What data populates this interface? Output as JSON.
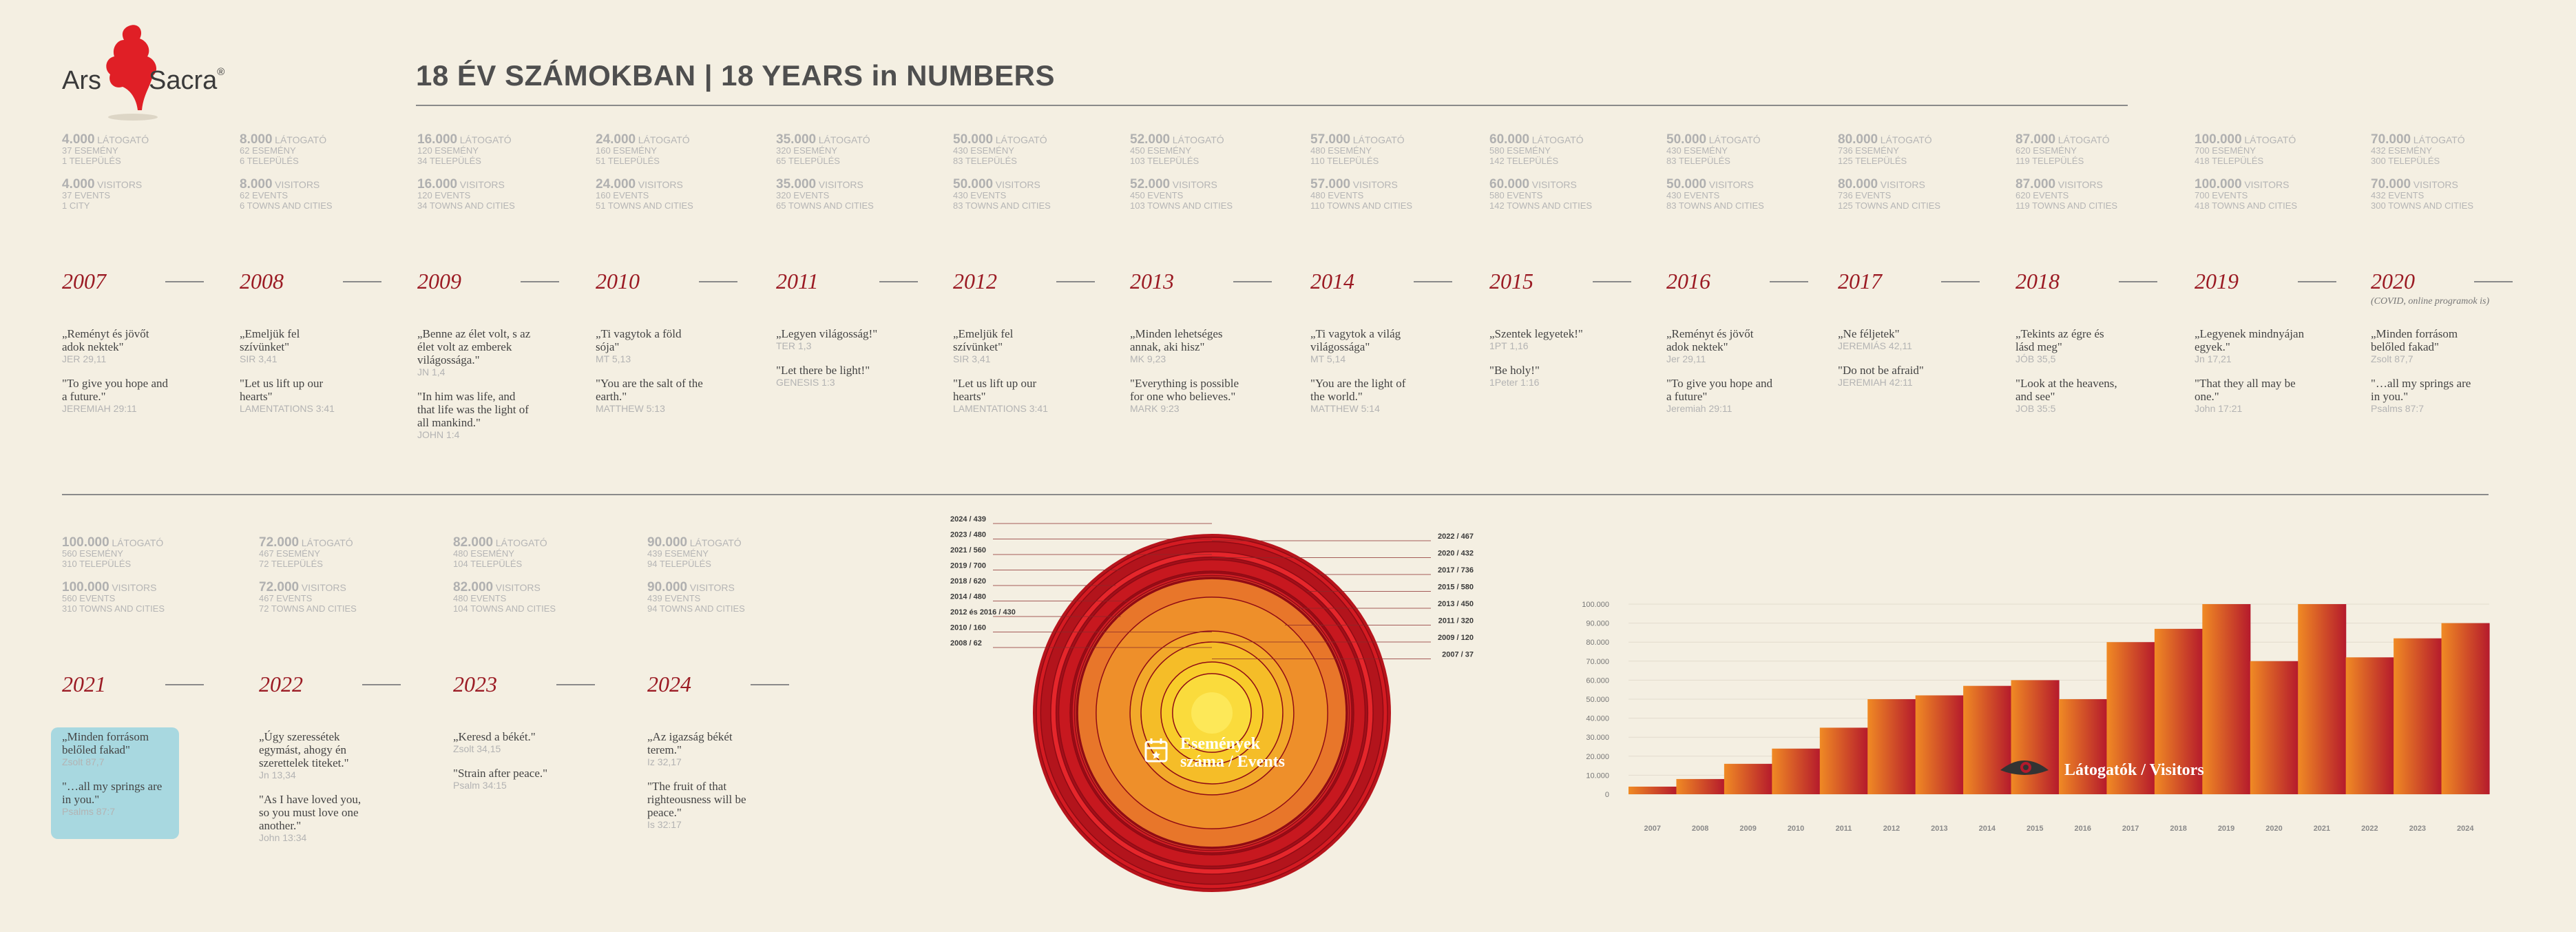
{
  "logo": {
    "left": "Ars",
    "right": "Sacra",
    "reg": "®"
  },
  "title": "18 ÉV SZÁMOKBAN | 18 YEARS in NUMBERS",
  "years": [
    {
      "year": "2007",
      "hu_count": "4.000",
      "hu_unit": "LÁTOGATÓ",
      "hu_events": "37 ESEMÉNY",
      "hu_towns": "1 TELEPÜLÉS",
      "en_count": "4.000",
      "en_unit": "VISITORS",
      "en_events": "37 EVENTS",
      "en_towns": "1 CITY",
      "q1": "„Reményt és jövőt adok nektek\"",
      "r1": "JER 29,11",
      "q2": "\"To give you hope and a future.\"",
      "r2": "JEREMIAH 29:11",
      "note": ""
    },
    {
      "year": "2008",
      "hu_count": "8.000",
      "hu_unit": "LÁTOGATÓ",
      "hu_events": "62 ESEMÉNY",
      "hu_towns": "6 TELEPÜLÉS",
      "en_count": "8.000",
      "en_unit": "VISITORS",
      "en_events": "62 EVENTS",
      "en_towns": "6 TOWNS AND CITIES",
      "q1": "„Emeljük fel szívünket\"",
      "r1": "SIR 3,41",
      "q2": "\"Let us lift up our hearts\"",
      "r2": "LAMENTATIONS 3:41",
      "note": ""
    },
    {
      "year": "2009",
      "hu_count": "16.000",
      "hu_unit": "LÁTOGATÓ",
      "hu_events": "120 ESEMÉNY",
      "hu_towns": "34 TELEPÜLÉS",
      "en_count": "16.000",
      "en_unit": "VISITORS",
      "en_events": "120 EVENTS",
      "en_towns": "34 TOWNS AND CITIES",
      "q1": "„Benne az élet volt, s az élet volt az emberek világossága.\"",
      "r1": "JN 1,4",
      "q2": "\"In him was life, and that life was the light of all mankind.\"",
      "r2": "JOHN 1:4",
      "note": ""
    },
    {
      "year": "2010",
      "hu_count": "24.000",
      "hu_unit": "LÁTOGATÓ",
      "hu_events": "160 ESEMÉNY",
      "hu_towns": "51 TELEPÜLÉS",
      "en_count": "24.000",
      "en_unit": "VISITORS",
      "en_events": "160 EVENTS",
      "en_towns": "51 TOWNS AND CITIES",
      "q1": "„Ti vagytok a föld sója\"",
      "r1": "MT 5,13",
      "q2": "\"You are the salt of the earth.\"",
      "r2": "MATTHEW 5:13",
      "note": ""
    },
    {
      "year": "2011",
      "hu_count": "35.000",
      "hu_unit": "LÁTOGATÓ",
      "hu_events": "320 ESEMÉNY",
      "hu_towns": "65 TELEPÜLÉS",
      "en_count": "35.000",
      "en_unit": "VISITORS",
      "en_events": "320 EVENTS",
      "en_towns": "65 TOWNS AND CITIES",
      "q1": "„Legyen világosság!\"",
      "r1": "TER 1,3",
      "q2": "\"Let there be light!\"",
      "r2": "GENESIS 1:3",
      "note": ""
    },
    {
      "year": "2012",
      "hu_count": "50.000",
      "hu_unit": "LÁTOGATÓ",
      "hu_events": "430 ESEMÉNY",
      "hu_towns": "83 TELEPÜLÉS",
      "en_count": "50.000",
      "en_unit": "VISITORS",
      "en_events": "430 EVENTS",
      "en_towns": "83 TOWNS AND CITIES",
      "q1": "„Emeljük fel szívünket\"",
      "r1": "SIR 3,41",
      "q2": "\"Let us lift up our hearts\"",
      "r2": "LAMENTATIONS 3:41",
      "note": ""
    },
    {
      "year": "2013",
      "hu_count": "52.000",
      "hu_unit": "LÁTOGATÓ",
      "hu_events": "450 ESEMÉNY",
      "hu_towns": "103 TELEPÜLÉS",
      "en_count": "52.000",
      "en_unit": "VISITORS",
      "en_events": "450 EVENTS",
      "en_towns": "103 TOWNS AND CITIES",
      "q1": "„Minden lehetséges annak, aki hisz\"",
      "r1": "MK 9,23",
      "q2": "\"Everything is possible for one who believes.\"",
      "r2": "MARK 9:23",
      "note": ""
    },
    {
      "year": "2014",
      "hu_count": "57.000",
      "hu_unit": "LÁTOGATÓ",
      "hu_events": "480 ESEMÉNY",
      "hu_towns": "110 TELEPÜLÉS",
      "en_count": "57.000",
      "en_unit": "VISITORS",
      "en_events": "480 EVENTS",
      "en_towns": "110 TOWNS AND CITIES",
      "q1": "„Ti vagytok a világ világossága\"",
      "r1": "MT 5,14",
      "q2": "\"You are the light of the world.\"",
      "r2": "MATTHEW 5:14",
      "note": ""
    },
    {
      "year": "2015",
      "hu_count": "60.000",
      "hu_unit": "LÁTOGATÓ",
      "hu_events": "580 ESEMÉNY",
      "hu_towns": "142 TELEPÜLÉS",
      "en_count": "60.000",
      "en_unit": "VISITORS",
      "en_events": "580 EVENTS",
      "en_towns": "142 TOWNS AND CITIES",
      "q1": "„Szentek legyetek!\"",
      "r1": "1PT 1,16",
      "q2": "\"Be holy!\"",
      "r2": "1Peter 1:16",
      "note": ""
    },
    {
      "year": "2016",
      "hu_count": "50.000",
      "hu_unit": "LÁTOGATÓ",
      "hu_events": "430 ESEMÉNY",
      "hu_towns": "83 TELEPÜLÉS",
      "en_count": "50.000",
      "en_unit": "VISITORS",
      "en_events": "430 EVENTS",
      "en_towns": "83 TOWNS AND CITIES",
      "q1": "„Reményt és jövőt adok nektek\"",
      "r1": "Jer 29,11",
      "q2": "\"To give you hope and a future\"",
      "r2": "Jeremiah 29:11",
      "note": ""
    },
    {
      "year": "2017",
      "hu_count": "80.000",
      "hu_unit": "LÁTOGATÓ",
      "hu_events": "736 ESEMÉNY",
      "hu_towns": "125 TELEPÜLÉS",
      "en_count": "80.000",
      "en_unit": "VISITORS",
      "en_events": "736 EVENTS",
      "en_towns": "125 TOWNS AND CITIES",
      "q1": "„Ne féljetek\"",
      "r1": "JEREMIÁS 42,11",
      "q2": "\"Do not be afraid\"",
      "r2": "JEREMIAH 42:11",
      "note": ""
    },
    {
      "year": "2018",
      "hu_count": "87.000",
      "hu_unit": "LÁTOGATÓ",
      "hu_events": "620 ESEMÉNY",
      "hu_towns": "119 TELEPÜLÉS",
      "en_count": "87.000",
      "en_unit": "VISITORS",
      "en_events": "620 EVENTS",
      "en_towns": "119 TOWNS AND CITIES",
      "q1": "„Tekints az égre és lásd meg\"",
      "r1": "JÓB 35,5",
      "q2": "\"Look at the heavens, and see\"",
      "r2": "JOB 35:5",
      "note": ""
    },
    {
      "year": "2019",
      "hu_count": "100.000",
      "hu_unit": "LÁTOGATÓ",
      "hu_events": "700 ESEMÉNY",
      "hu_towns": "418 TELEPÜLÉS",
      "en_count": "100.000",
      "en_unit": "VISITORS",
      "en_events": "700 EVENTS",
      "en_towns": "418 TOWNS AND CITIES",
      "q1": "„Legyenek mindnyájan egyek.\"",
      "r1": "Jn 17,21",
      "q2": "\"That they all may be one.\"",
      "r2": "John 17:21",
      "note": ""
    },
    {
      "year": "2020",
      "hu_count": "70.000",
      "hu_unit": "LÁTOGATÓ",
      "hu_events": "432 ESEMÉNY",
      "hu_towns": "300 TELEPÜLÉS",
      "en_count": "70.000",
      "en_unit": "VISITORS",
      "en_events": "432 EVENTS",
      "en_towns": "300 TOWNS AND CITIES",
      "q1": "„Minden forrásom belőled fakad\"",
      "r1": "Zsolt 87,7",
      "q2": "\"…all my springs are in you.\"",
      "r2": "Psalms 87:7",
      "note": "(COVID, online programok is)"
    },
    {
      "year": "2021",
      "hu_count": "100.000",
      "hu_unit": "LÁTOGATÓ",
      "hu_events": "560 ESEMÉNY",
      "hu_towns": "310 TELEPÜLÉS",
      "en_count": "100.000",
      "en_unit": "VISITORS",
      "en_events": "560 EVENTS",
      "en_towns": "310 TOWNS AND CITIES",
      "q1": "„Minden forrásom belőled fakad\"",
      "r1": "Zsolt 87,7",
      "q2": "\"…all my springs are in you.\"",
      "r2": "Psalms 87:7",
      "note": ""
    },
    {
      "year": "2022",
      "hu_count": "72.000",
      "hu_unit": "LÁTOGATÓ",
      "hu_events": "467 ESEMÉNY",
      "hu_towns": "72 TELEPÜLÉS",
      "en_count": "72.000",
      "en_unit": "VISITORS",
      "en_events": "467 EVENTS",
      "en_towns": "72 TOWNS AND CITIES",
      "q1": "„Úgy szeressétek egymást, ahogy én szerettelek titeket.\"",
      "r1": "Jn 13,34",
      "q2": "\"As I have loved you, so you must love one another.\"",
      "r2": "John 13:34",
      "note": ""
    },
    {
      "year": "2023",
      "hu_count": "82.000",
      "hu_unit": "LÁTOGATÓ",
      "hu_events": "480 ESEMÉNY",
      "hu_towns": "104 TELEPÜLÉS",
      "en_count": "82.000",
      "en_unit": "VISITORS",
      "en_events": "480 EVENTS",
      "en_towns": "104 TOWNS AND CITIES",
      "q1": "„Keresd a békét.\"",
      "r1": "Zsolt 34,15",
      "q2": "\"Strain after peace.\"",
      "r2": "Psalm 34:15",
      "note": ""
    },
    {
      "year": "2024",
      "hu_count": "90.000",
      "hu_unit": "LÁTOGATÓ",
      "hu_events": "439 ESEMÉNY",
      "hu_towns": "94 TELEPÜLÉS",
      "en_count": "90.000",
      "en_unit": "VISITORS",
      "en_events": "439 EVENTS",
      "en_towns": "94 TOWNS AND CITIES",
      "q1": "„Az igazság békét terem.\"",
      "r1": "Iz 32,17",
      "q2": "\"The fruit of that righteousness will be peace.\"",
      "r2": "Is 32:17",
      "note": ""
    }
  ],
  "events_title_hu": "Események",
  "events_title_en": "száma / Events",
  "visitors_title": "Látogatók / Visitors",
  "chart_data": [
    {
      "type": "pie",
      "title": "Események száma / Events",
      "labels": [
        "2024 / 439",
        "2023 / 480",
        "2022 / 467",
        "2021 / 560",
        "2020 / 432",
        "2019 / 700",
        "2018 / 620",
        "2017 / 736",
        "2015 / 580",
        "2014 / 480",
        "2013 / 450",
        "2012 és 2016 / 430",
        "2011 / 320",
        "2010 / 160",
        "2009 / 120",
        "2008 / 62",
        "2007 / 37"
      ],
      "values": [
        439,
        480,
        467,
        560,
        432,
        700,
        620,
        736,
        580,
        480,
        450,
        430,
        320,
        160,
        120,
        62,
        37
      ],
      "label_side": [
        "left",
        "left",
        "right",
        "left",
        "right",
        "left",
        "left",
        "right",
        "right",
        "left",
        "right",
        "left",
        "right",
        "left",
        "right",
        "left",
        "right"
      ]
    },
    {
      "type": "area",
      "title": "Látogatók / Visitors",
      "categories": [
        "2007",
        "2008",
        "2009",
        "2010",
        "2011",
        "2012",
        "2013",
        "2014",
        "2015",
        "2016",
        "2017",
        "2018",
        "2019",
        "2020",
        "2021",
        "2022",
        "2023",
        "2024"
      ],
      "values": [
        4000,
        8000,
        16000,
        24000,
        35000,
        50000,
        52000,
        57000,
        60000,
        50000,
        80000,
        87000,
        100000,
        70000,
        100000,
        72000,
        82000,
        90000
      ],
      "ylim": [
        0,
        100000
      ],
      "yticks": [
        "0",
        "10.000",
        "20.000",
        "30.000",
        "40.000",
        "50.000",
        "60.000",
        "70.000",
        "80.000",
        "90.000",
        "100.000"
      ],
      "grid": true,
      "colors": {
        "start": "#f08a24",
        "end": "#b51a2c"
      }
    }
  ]
}
